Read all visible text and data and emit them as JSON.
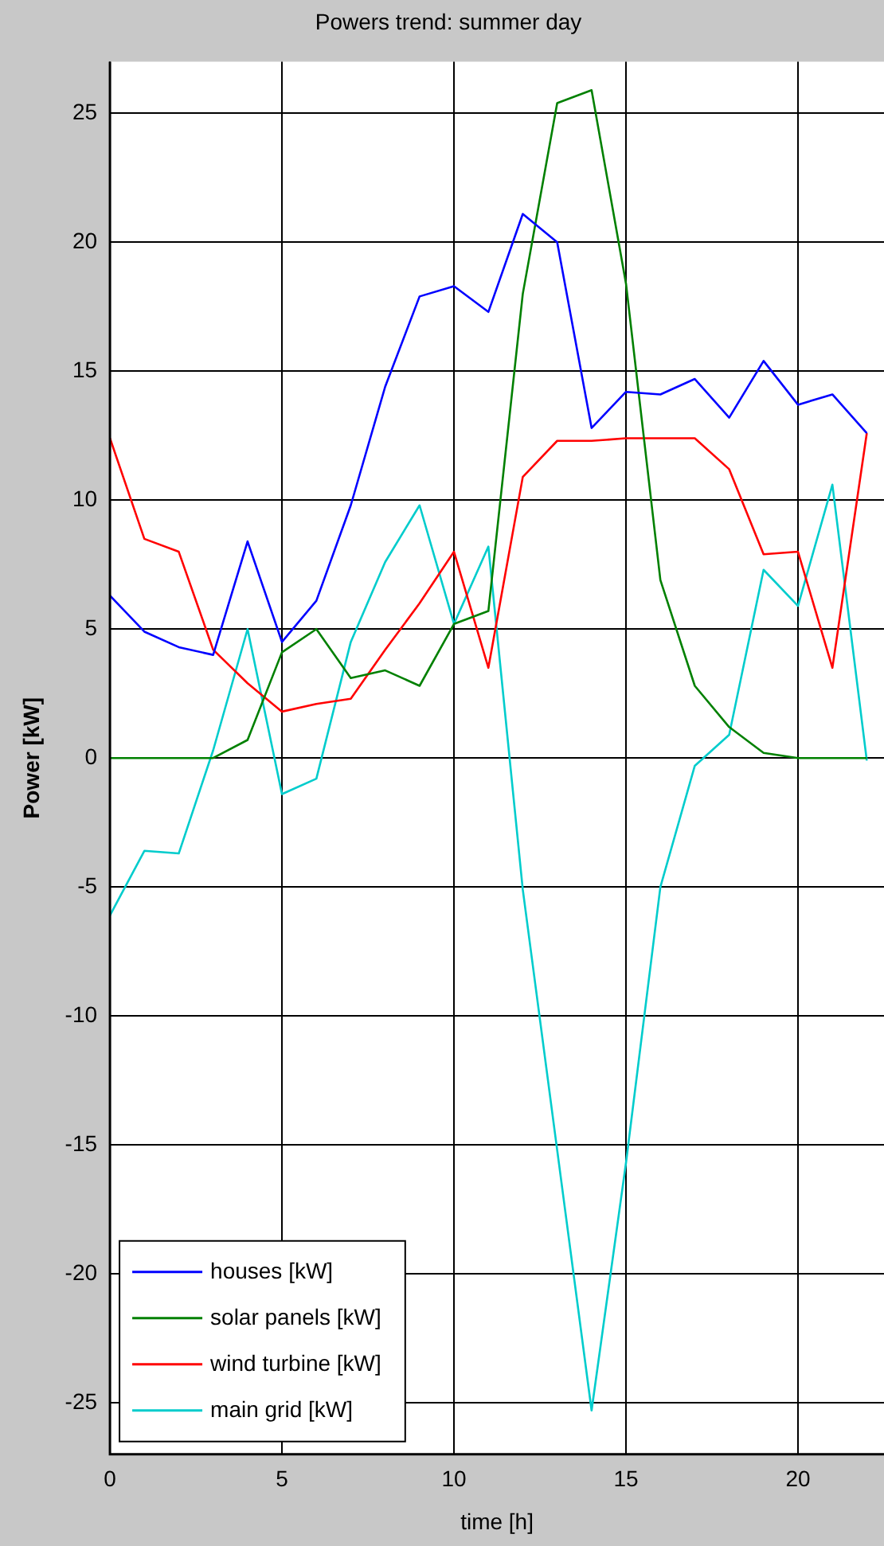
{
  "chart_data": {
    "type": "line",
    "title": "Powers trend: summer day",
    "xlabel": "time [h]",
    "ylabel": "Power [kW]",
    "x": [
      0,
      1,
      2,
      3,
      4,
      5,
      6,
      7,
      8,
      9,
      10,
      11,
      12,
      13,
      14,
      15,
      16,
      17,
      18,
      19,
      20,
      21,
      22
    ],
    "series": [
      {
        "name": "houses [kW]",
        "color": "#0000ff",
        "values": [
          6.3,
          4.9,
          4.3,
          4.0,
          8.4,
          4.5,
          6.1,
          9.8,
          14.4,
          17.9,
          18.3,
          17.3,
          21.1,
          20.0,
          12.8,
          14.2,
          14.1,
          14.7,
          13.2,
          15.4,
          13.7,
          14.1,
          12.6
        ]
      },
      {
        "name": "solar panels [kW]",
        "color": "#008000",
        "values": [
          0,
          0,
          0,
          0,
          0.7,
          4.1,
          5.0,
          3.1,
          3.4,
          2.8,
          5.2,
          5.7,
          18.0,
          25.4,
          25.9,
          18.4,
          6.9,
          2.8,
          1.2,
          0.2,
          0,
          0,
          0
        ]
      },
      {
        "name": "wind turbine [kW]",
        "color": "#ff0000",
        "values": [
          12.4,
          8.5,
          8.0,
          4.2,
          2.9,
          1.8,
          2.1,
          2.3,
          4.2,
          6.0,
          8.0,
          3.5,
          10.9,
          12.3,
          12.3,
          12.4,
          12.4,
          12.4,
          11.2,
          7.9,
          8.0,
          3.5,
          12.6
        ]
      },
      {
        "name": "main grid [kW]",
        "color": "#00cccc",
        "values": [
          -6.1,
          -3.6,
          -3.7,
          0.3,
          5.0,
          -1.4,
          -0.8,
          4.5,
          7.6,
          9.8,
          5.2,
          8.2,
          -5.1,
          -15.2,
          -25.3,
          -15.7,
          -5.0,
          -0.3,
          0.9,
          7.3,
          5.9,
          10.6,
          -0.1
        ]
      }
    ],
    "xlim": [
      0,
      22.5
    ],
    "xticks": [
      0,
      5,
      10,
      15,
      20
    ],
    "ylim": [
      -27,
      27
    ],
    "yticks": [
      -25,
      -20,
      -15,
      -10,
      -5,
      0,
      5,
      10,
      15,
      20,
      25
    ],
    "grid": true,
    "legend": "bottom left",
    "line_style": "solid",
    "marker": "none"
  }
}
